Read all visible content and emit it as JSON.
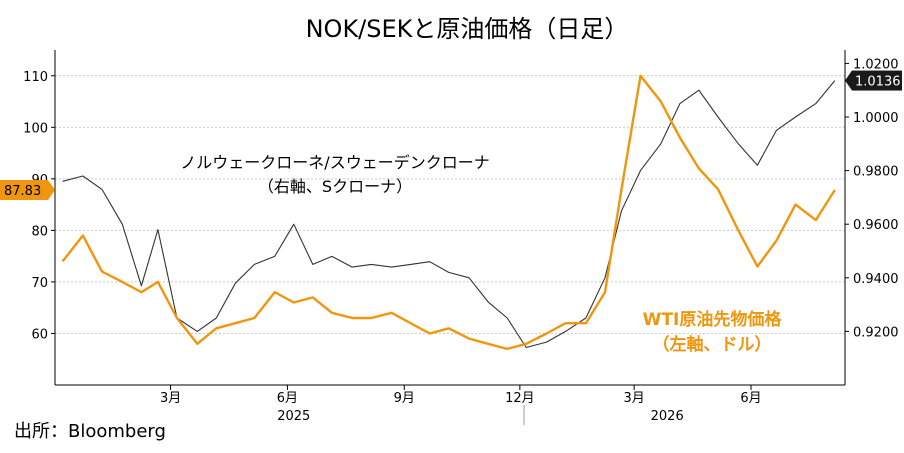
{
  "chart_data": {
    "type": "line",
    "title": "NOK/SEKと原油価格（日足）",
    "source": "出所：Bloomberg",
    "x_month_labels": [
      "3月",
      "6月",
      "9月",
      "12月",
      "3月",
      "6月"
    ],
    "x_year_labels": [
      "2025",
      "2026"
    ],
    "left_axis": {
      "ticks": [
        "60",
        "70",
        "80",
        "90",
        "100",
        "110"
      ],
      "ylim": [
        50,
        115
      ]
    },
    "right_axis": {
      "ticks": [
        "0.9200",
        "0.9400",
        "0.9600",
        "0.9800",
        "1.0000",
        "1.0200"
      ],
      "ylim": [
        0.9,
        1.025
      ]
    },
    "grid": true,
    "series": [
      {
        "name": "ノルウェークローネ/スウェーデンクローナ",
        "unit_label": "（右軸、Sクローナ）",
        "axis": "right",
        "color": "#333333",
        "last_value_label": "1.0136",
        "x": [
          "2024-12-20",
          "2025-01-05",
          "2025-01-20",
          "2025-02-05",
          "2025-02-20",
          "2025-03-05",
          "2025-03-20",
          "2025-04-05",
          "2025-04-20",
          "2025-05-05",
          "2025-05-20",
          "2025-06-05",
          "2025-06-20",
          "2025-07-05",
          "2025-07-20",
          "2025-08-05",
          "2025-08-20",
          "2025-09-05",
          "2025-09-20",
          "2025-10-05",
          "2025-10-20",
          "2025-11-05",
          "2025-11-20",
          "2025-12-05",
          "2025-12-20",
          "2026-01-05",
          "2026-01-20",
          "2026-02-05",
          "2026-02-20",
          "2026-03-05",
          "2026-03-20",
          "2026-04-05",
          "2026-04-20",
          "2026-05-05",
          "2026-05-20",
          "2026-06-05",
          "2026-06-20",
          "2026-07-05",
          "2026-07-20",
          "2026-08-05",
          "2026-08-20"
        ],
        "values": [
          0.976,
          0.978,
          0.973,
          0.96,
          0.937,
          0.958,
          0.925,
          0.92,
          0.925,
          0.938,
          0.945,
          0.948,
          0.96,
          0.945,
          0.948,
          0.944,
          0.945,
          0.944,
          0.945,
          0.946,
          0.942,
          0.94,
          0.931,
          0.925,
          0.914,
          0.916,
          0.92,
          0.925,
          0.94,
          0.965,
          0.98,
          0.99,
          1.005,
          1.01,
          1.0,
          0.99,
          0.982,
          0.995,
          1.0,
          1.005,
          1.0136
        ]
      },
      {
        "name": "WTI原油先物価格",
        "unit_label": "（左軸、ドル）",
        "axis": "left",
        "color": "#f0960e",
        "last_value_label": "87.83",
        "x": [
          "2024-12-20",
          "2025-01-05",
          "2025-01-20",
          "2025-02-05",
          "2025-02-20",
          "2025-03-05",
          "2025-03-20",
          "2025-04-05",
          "2025-04-20",
          "2025-05-05",
          "2025-05-20",
          "2025-06-05",
          "2025-06-20",
          "2025-07-05",
          "2025-07-20",
          "2025-08-05",
          "2025-08-20",
          "2025-09-05",
          "2025-09-20",
          "2025-10-05",
          "2025-10-20",
          "2025-11-05",
          "2025-11-20",
          "2025-12-05",
          "2025-12-20",
          "2026-01-05",
          "2026-01-20",
          "2026-02-05",
          "2026-02-20",
          "2026-03-05",
          "2026-03-20",
          "2026-04-05",
          "2026-04-20",
          "2026-05-05",
          "2026-05-20",
          "2026-06-05",
          "2026-06-20",
          "2026-07-05",
          "2026-07-20",
          "2026-08-05",
          "2026-08-20"
        ],
        "values": [
          74,
          79,
          72,
          70,
          68,
          70,
          63,
          58,
          61,
          62,
          63,
          68,
          66,
          67,
          64,
          63,
          63,
          64,
          62,
          60,
          61,
          59,
          58,
          57,
          58,
          60,
          62,
          62,
          68,
          88,
          110,
          105,
          98,
          92,
          88,
          80,
          73,
          78,
          85,
          82,
          87.83
        ]
      }
    ]
  }
}
